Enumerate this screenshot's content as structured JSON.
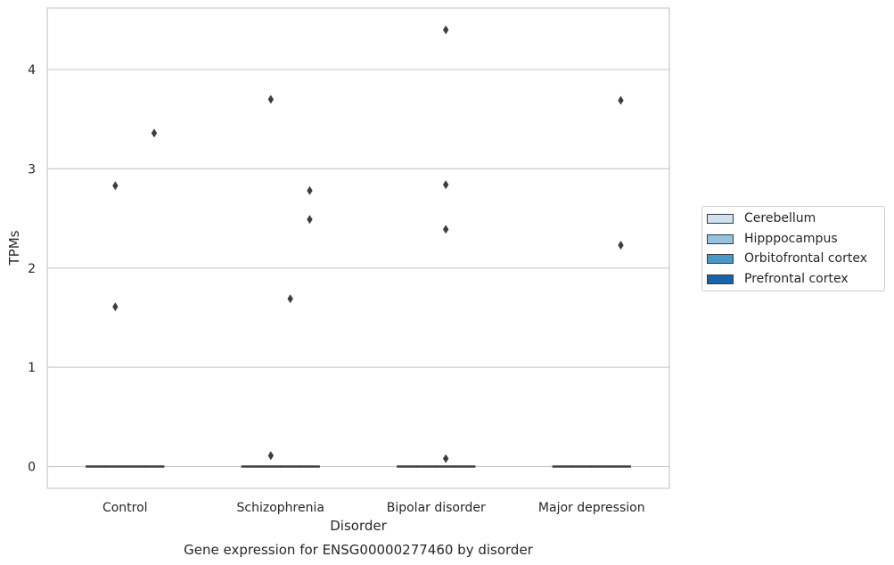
{
  "chart_data": {
    "type": "box",
    "title": "Gene expression for ENSG00000277460 by disorder",
    "xlabel": "Disorder",
    "ylabel": "TPMs",
    "categories": [
      "Control",
      "Schizophrenia",
      "Bipolar disorder",
      "Major depression"
    ],
    "ylim": [
      -0.22,
      4.62
    ],
    "yticks": [
      0,
      1,
      2,
      3,
      4
    ],
    "grid": true,
    "legend_position": "right",
    "series": [
      {
        "name": "Cerebellum",
        "color": "#d0e1f2",
        "boxes": [
          {
            "median": 0,
            "q1": 0,
            "q3": 0
          },
          {
            "median": 0,
            "q1": 0,
            "q3": 0
          },
          {
            "median": 0,
            "q1": 0,
            "q3": 0
          },
          {
            "median": 0,
            "q1": 0,
            "q3": 0
          }
        ],
        "outliers": [
          [],
          [],
          [],
          []
        ]
      },
      {
        "name": "Hipppocampus",
        "color": "#94c4df",
        "boxes": [
          {
            "median": 0,
            "q1": 0,
            "q3": 0
          },
          {
            "median": 0,
            "q1": 0,
            "q3": 0
          },
          {
            "median": 0,
            "q1": 0,
            "q3": 0
          },
          {
            "median": 0,
            "q1": 0,
            "q3": 0
          }
        ],
        "outliers": [
          [
            1.61,
            2.83
          ],
          [
            3.7,
            0.11
          ],
          [],
          []
        ]
      },
      {
        "name": "Orbitofrontal cortex",
        "color": "#4a98c9",
        "boxes": [
          {
            "median": 0,
            "q1": 0,
            "q3": 0
          },
          {
            "median": 0,
            "q1": 0,
            "q3": 0
          },
          {
            "median": 0,
            "q1": 0,
            "q3": 0
          },
          {
            "median": 0,
            "q1": 0,
            "q3": 0
          }
        ],
        "outliers": [
          [],
          [
            1.69
          ],
          [
            4.4,
            2.84,
            2.39,
            0.08
          ],
          []
        ]
      },
      {
        "name": "Prefrontal cortex",
        "color": "#1764ab",
        "boxes": [
          {
            "median": 0,
            "q1": 0,
            "q3": 0
          },
          {
            "median": 0,
            "q1": 0,
            "q3": 0
          },
          {
            "median": 0,
            "q1": 0,
            "q3": 0
          },
          {
            "median": 0,
            "q1": 0,
            "q3": 0
          }
        ],
        "outliers": [
          [
            3.36
          ],
          [
            2.78,
            2.49
          ],
          [],
          [
            3.69,
            2.23
          ]
        ]
      }
    ]
  }
}
